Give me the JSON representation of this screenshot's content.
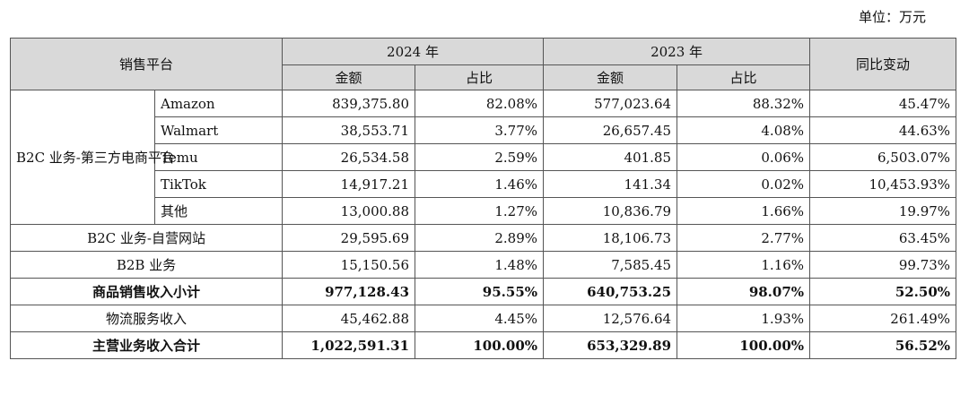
{
  "unit_label": "单位：万元",
  "header": {
    "platform": "销售平台",
    "year_2024": "2024 年",
    "year_2023": "2023 年",
    "yoy": "同比变动",
    "amount": "金额",
    "share": "占比"
  },
  "group_label": "B2C 业务-第三方电商平台",
  "sub_rows": [
    {
      "name": "Amazon",
      "amt24": "839,375.80",
      "pct24": "82.08%",
      "amt23": "577,023.64",
      "pct23": "88.32%",
      "yoy": "45.47%"
    },
    {
      "name": "Walmart",
      "amt24": "38,553.71",
      "pct24": "3.77%",
      "amt23": "26,657.45",
      "pct23": "4.08%",
      "yoy": "44.63%"
    },
    {
      "name": "Temu",
      "amt24": "26,534.58",
      "pct24": "2.59%",
      "amt23": "401.85",
      "pct23": "0.06%",
      "yoy": "6,503.07%"
    },
    {
      "name": "TikTok",
      "amt24": "14,917.21",
      "pct24": "1.46%",
      "amt23": "141.34",
      "pct23": "0.02%",
      "yoy": "10,453.93%"
    },
    {
      "name": "其他",
      "amt24": "13,000.88",
      "pct24": "1.27%",
      "amt23": "10,836.79",
      "pct23": "1.66%",
      "yoy": "19.97%"
    }
  ],
  "rows": [
    {
      "name": "B2C 业务-自营网站",
      "amt24": "29,595.69",
      "pct24": "2.89%",
      "amt23": "18,106.73",
      "pct23": "2.77%",
      "yoy": "63.45%"
    },
    {
      "name": "B2B 业务",
      "amt24": "15,150.56",
      "pct24": "1.48%",
      "amt23": "7,585.45",
      "pct23": "1.16%",
      "yoy": "99.73%"
    },
    {
      "name": "商品销售收入小计",
      "amt24": "977,128.43",
      "pct24": "95.55%",
      "amt23": "640,753.25",
      "pct23": "98.07%",
      "yoy": "52.50%"
    },
    {
      "name": "物流服务收入",
      "amt24": "45,462.88",
      "pct24": "4.45%",
      "amt23": "12,576.64",
      "pct23": "1.93%",
      "yoy": "261.49%"
    },
    {
      "name": "主营业务收入合计",
      "amt24": "1,022,591.31",
      "pct24": "100.00%",
      "amt23": "653,329.89",
      "pct23": "100.00%",
      "yoy": "56.52%"
    }
  ]
}
